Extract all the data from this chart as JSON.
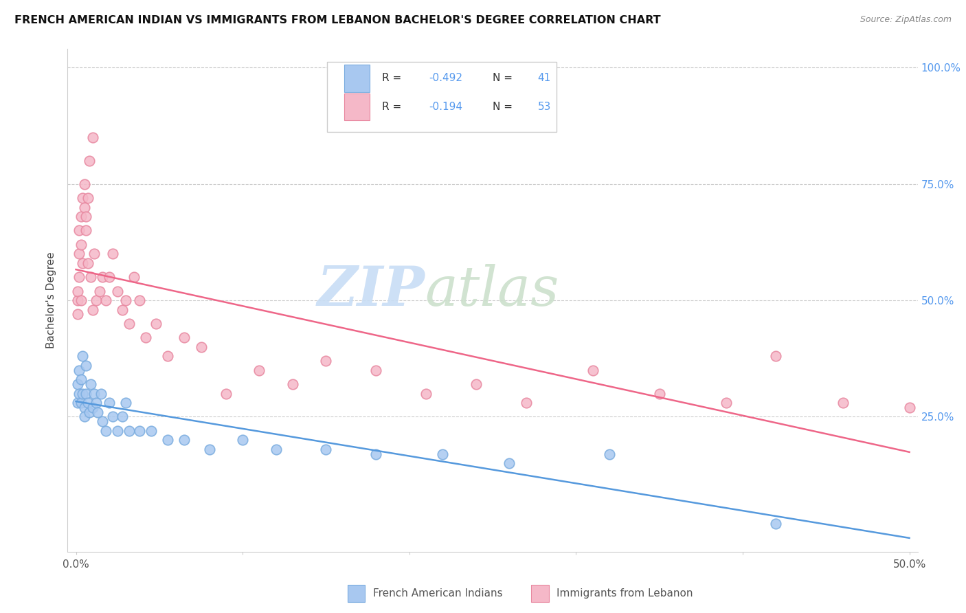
{
  "title": "FRENCH AMERICAN INDIAN VS IMMIGRANTS FROM LEBANON BACHELOR'S DEGREE CORRELATION CHART",
  "source": "Source: ZipAtlas.com",
  "ylabel": "Bachelor's Degree",
  "right_yticks": [
    "100.0%",
    "75.0%",
    "50.0%",
    "25.0%"
  ],
  "right_ytick_vals": [
    1.0,
    0.75,
    0.5,
    0.25
  ],
  "legend_blue_r_label": "R = ",
  "legend_blue_r_val": "-0.492",
  "legend_blue_n_label": "N = ",
  "legend_blue_n_val": "41",
  "legend_pink_r_label": "R = ",
  "legend_pink_r_val": "-0.194",
  "legend_pink_n_label": "N = ",
  "legend_pink_n_val": "53",
  "legend_blue_label": "French American Indians",
  "legend_pink_label": "Immigrants from Lebanon",
  "blue_color": "#a8c8f0",
  "pink_color": "#f5b8c8",
  "blue_edge_color": "#7aacdf",
  "pink_edge_color": "#e888a0",
  "blue_line_color": "#5599dd",
  "pink_line_color": "#ee6688",
  "r_n_color": "#5599ee",
  "watermark_color": "#d8e8f5",
  "watermark_zip_color": "#c8ddf0",
  "watermark_atlas_color": "#dde8d0",
  "xlim": [
    0.0,
    0.5
  ],
  "ylim": [
    0.0,
    1.0
  ],
  "blue_x": [
    0.001,
    0.001,
    0.002,
    0.002,
    0.003,
    0.003,
    0.004,
    0.004,
    0.005,
    0.005,
    0.006,
    0.006,
    0.007,
    0.008,
    0.009,
    0.01,
    0.011,
    0.012,
    0.013,
    0.015,
    0.016,
    0.018,
    0.02,
    0.022,
    0.025,
    0.028,
    0.03,
    0.032,
    0.038,
    0.045,
    0.055,
    0.065,
    0.08,
    0.1,
    0.12,
    0.15,
    0.18,
    0.22,
    0.26,
    0.32,
    0.42
  ],
  "blue_y": [
    0.32,
    0.28,
    0.35,
    0.3,
    0.33,
    0.28,
    0.38,
    0.3,
    0.27,
    0.25,
    0.36,
    0.3,
    0.28,
    0.26,
    0.32,
    0.27,
    0.3,
    0.28,
    0.26,
    0.3,
    0.24,
    0.22,
    0.28,
    0.25,
    0.22,
    0.25,
    0.28,
    0.22,
    0.22,
    0.22,
    0.2,
    0.2,
    0.18,
    0.2,
    0.18,
    0.18,
    0.17,
    0.17,
    0.15,
    0.17,
    0.02
  ],
  "pink_x": [
    0.001,
    0.001,
    0.001,
    0.002,
    0.002,
    0.002,
    0.003,
    0.003,
    0.003,
    0.004,
    0.004,
    0.005,
    0.005,
    0.006,
    0.006,
    0.007,
    0.007,
    0.008,
    0.009,
    0.01,
    0.01,
    0.011,
    0.012,
    0.014,
    0.016,
    0.018,
    0.02,
    0.022,
    0.025,
    0.028,
    0.03,
    0.032,
    0.035,
    0.038,
    0.042,
    0.048,
    0.055,
    0.065,
    0.075,
    0.09,
    0.11,
    0.13,
    0.15,
    0.18,
    0.21,
    0.24,
    0.27,
    0.31,
    0.35,
    0.39,
    0.42,
    0.46,
    0.5
  ],
  "pink_y": [
    0.5,
    0.52,
    0.47,
    0.55,
    0.6,
    0.65,
    0.5,
    0.68,
    0.62,
    0.72,
    0.58,
    0.7,
    0.75,
    0.65,
    0.68,
    0.72,
    0.58,
    0.8,
    0.55,
    0.85,
    0.48,
    0.6,
    0.5,
    0.52,
    0.55,
    0.5,
    0.55,
    0.6,
    0.52,
    0.48,
    0.5,
    0.45,
    0.55,
    0.5,
    0.42,
    0.45,
    0.38,
    0.42,
    0.4,
    0.3,
    0.35,
    0.32,
    0.37,
    0.35,
    0.3,
    0.32,
    0.28,
    0.35,
    0.3,
    0.28,
    0.38,
    0.28,
    0.27
  ]
}
